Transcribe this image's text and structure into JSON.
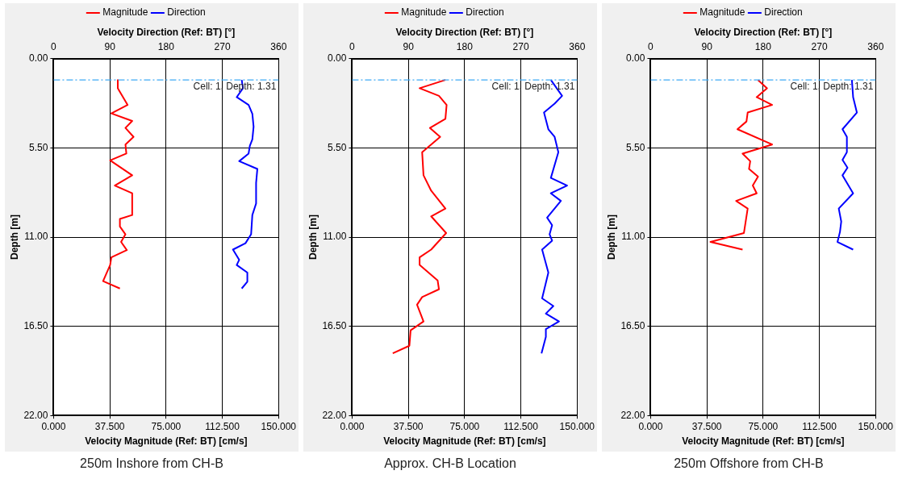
{
  "chart_data": [
    {
      "type": "line",
      "title": "250m Inshore from CH-B",
      "xlabel": "Velocity Magnitude (Ref: BT) [cm/s]",
      "x2label": "Velocity Direction (Ref: BT) [°]",
      "ylabel": "Depth [m]",
      "xlim": [
        0,
        150
      ],
      "xticks": [
        {
          "value": 0,
          "label": "0.000"
        },
        {
          "value": 37.5,
          "label": "37.500"
        },
        {
          "value": 75,
          "label": "75.000"
        },
        {
          "value": 112.5,
          "label": "112.500"
        },
        {
          "value": 150,
          "label": "150.000"
        }
      ],
      "x2lim": [
        0,
        360
      ],
      "x2ticks": [
        0,
        90,
        180,
        270,
        360
      ],
      "ylim": [
        22,
        0
      ],
      "yticks": [
        {
          "value": 0,
          "label": "0.00"
        },
        {
          "value": 5.5,
          "label": "5.50"
        },
        {
          "value": 11,
          "label": "11.00"
        },
        {
          "value": 16.5,
          "label": "16.50"
        },
        {
          "value": 22,
          "label": "22.00"
        }
      ],
      "grid": true,
      "legend": "top",
      "ref_lines": [
        {
          "axis": "y",
          "value": 1.31,
          "label": "Cell: 1, Depth: 1.31",
          "color": "#3fa9f5",
          "line_style": "dashdot"
        }
      ],
      "series": [
        {
          "name": "Magnitude",
          "color": "#ff0000",
          "x": [
            42.8,
            42.8,
            49.3,
            38.5,
            52.4,
            47.9,
            53.3,
            47.9,
            48.5,
            37.7,
            52.4,
            40.8,
            52.4,
            52.4,
            44.2,
            44.2,
            47.9,
            45.0,
            48.8,
            38.5,
            37.7,
            33.0,
            44.2
          ],
          "values": [
            1.31,
            1.82,
            2.85,
            3.37,
            3.84,
            4.27,
            4.82,
            5.29,
            5.85,
            6.27,
            7.19,
            7.82,
            8.3,
            9.64,
            9.88,
            10.35,
            10.83,
            11.3,
            11.8,
            12.25,
            12.72,
            13.72,
            14.17
          ]
        },
        {
          "name": "Direction",
          "color": "#0000ff",
          "axis": "x2",
          "x": [
            301,
            303,
            293,
            312,
            318,
            320,
            318,
            314,
            312,
            297,
            326,
            324,
            324,
            318,
            316,
            307,
            287,
            297,
            293,
            310,
            310,
            301
          ],
          "values": [
            1.31,
            1.82,
            2.37,
            2.85,
            3.4,
            4.19,
            4.98,
            5.37,
            5.85,
            6.32,
            6.8,
            7.66,
            8.93,
            9.64,
            10.83,
            11.38,
            11.77,
            12.4,
            12.72,
            13.19,
            13.75,
            14.17
          ]
        }
      ]
    },
    {
      "type": "line",
      "title": "Approx. CH-B Location",
      "xlabel": "Velocity Magnitude (Ref: BT) [cm/s]",
      "x2label": "Velocity Direction (Ref: BT) [°]",
      "ylabel": "Depth [m]",
      "xlim": [
        0,
        150
      ],
      "xticks": [
        {
          "value": 0,
          "label": "0.000"
        },
        {
          "value": 37.5,
          "label": "37.500"
        },
        {
          "value": 75,
          "label": "75.000"
        },
        {
          "value": 112.5,
          "label": "112.500"
        },
        {
          "value": 150,
          "label": "150.000"
        }
      ],
      "x2lim": [
        0,
        360
      ],
      "x2ticks": [
        0,
        90,
        180,
        270,
        360
      ],
      "ylim": [
        22,
        0
      ],
      "yticks": [
        {
          "value": 0,
          "label": "0.00"
        },
        {
          "value": 5.5,
          "label": "5.50"
        },
        {
          "value": 11,
          "label": "11.00"
        },
        {
          "value": 16.5,
          "label": "16.50"
        },
        {
          "value": 22,
          "label": "22.00"
        }
      ],
      "grid": true,
      "legend": "top",
      "ref_lines": [
        {
          "axis": "y",
          "value": 1.31,
          "label": "Cell: 1, Depth: 1.31",
          "color": "#3fa9f5",
          "line_style": "dashdot"
        }
      ],
      "series": [
        {
          "name": "Magnitude",
          "color": "#ff0000",
          "x": [
            62.2,
            45.0,
            57.9,
            63.0,
            62.2,
            51.9,
            58.7,
            46.7,
            47.6,
            52.7,
            62.2,
            52.7,
            62.7,
            52.7,
            45.0,
            45.0,
            57.0,
            57.9,
            46.7,
            43.3,
            47.6,
            39.0,
            38.2,
            27.1
          ],
          "values": [
            1.31,
            1.82,
            2.29,
            2.85,
            3.71,
            4.27,
            4.82,
            5.77,
            7.19,
            8.14,
            9.24,
            9.72,
            10.75,
            11.77,
            12.25,
            12.72,
            13.67,
            14.22,
            14.7,
            15.17,
            16.2,
            16.75,
            17.7,
            18.17
          ]
        },
        {
          "name": "Direction",
          "color": "#0000ff",
          "axis": "x2",
          "x": [
            318,
            336,
            324,
            307,
            314,
            324,
            330,
            318,
            344,
            318,
            334,
            312,
            320,
            316,
            320,
            304,
            314,
            304,
            322,
            310,
            331,
            310,
            310,
            303
          ],
          "values": [
            1.31,
            2.29,
            2.77,
            3.32,
            4.35,
            4.82,
            5.77,
            7.35,
            7.82,
            8.3,
            8.77,
            9.8,
            10.27,
            10.83,
            11.22,
            11.77,
            13.19,
            14.78,
            15.25,
            15.72,
            16.2,
            16.67,
            17.15,
            18.17
          ]
        }
      ]
    },
    {
      "type": "line",
      "title": "250m Offshore from CH-B",
      "xlabel": "Velocity Magnitude (Ref: BT) [cm/s]",
      "x2label": "Velocity Direction (Ref: BT) [°]",
      "ylabel": "Depth [m]",
      "xlim": [
        0,
        150
      ],
      "xticks": [
        {
          "value": 0,
          "label": "0.000"
        },
        {
          "value": 37.5,
          "label": "37.500"
        },
        {
          "value": 75,
          "label": "75.000"
        },
        {
          "value": 112.5,
          "label": "112.500"
        },
        {
          "value": 150,
          "label": "150.000"
        }
      ],
      "x2lim": [
        0,
        360
      ],
      "x2ticks": [
        0,
        90,
        180,
        270,
        360
      ],
      "ylim": [
        22,
        0
      ],
      "yticks": [
        {
          "value": 0,
          "label": "0.00"
        },
        {
          "value": 5.5,
          "label": "5.50"
        },
        {
          "value": 11,
          "label": "11.00"
        },
        {
          "value": 16.5,
          "label": "16.50"
        },
        {
          "value": 22,
          "label": "22.00"
        }
      ],
      "grid": true,
      "legend": "top",
      "ref_lines": [
        {
          "axis": "y",
          "value": 1.31,
          "label": "Cell: 1, Depth: 1.31",
          "color": "#3fa9f5",
          "line_style": "dashdot"
        }
      ],
      "series": [
        {
          "name": "Magnitude",
          "color": "#ff0000",
          "x": [
            71.6,
            77.6,
            70.7,
            81.0,
            64.7,
            63.9,
            57.9,
            81.0,
            61.3,
            66.4,
            65.6,
            71.6,
            68.1,
            70.7,
            57.0,
            64.7,
            62.2,
            39.9,
            61.3
          ],
          "values": [
            1.31,
            1.82,
            2.37,
            2.85,
            3.32,
            3.87,
            4.35,
            5.29,
            5.85,
            6.32,
            6.8,
            7.27,
            7.82,
            8.3,
            8.77,
            9.24,
            10.75,
            11.3,
            11.77
          ]
        },
        {
          "name": "Direction",
          "color": "#0000ff",
          "axis": "x2",
          "x": [
            322,
            324,
            330,
            307,
            314,
            314,
            307,
            315,
            307,
            324,
            301,
            305,
            303,
            299,
            324
          ],
          "values": [
            1.31,
            2.37,
            3.32,
            4.35,
            4.82,
            5.77,
            6.24,
            6.72,
            7.19,
            8.3,
            9.24,
            10.04,
            10.67,
            11.3,
            11.77
          ]
        }
      ]
    }
  ]
}
